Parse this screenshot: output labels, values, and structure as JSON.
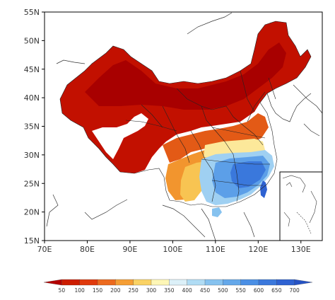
{
  "map": {
    "lat_labels": [
      "55N",
      "50N",
      "45N",
      "40N",
      "35N",
      "30N",
      "25N",
      "20N",
      "15N"
    ],
    "lon_labels": [
      "70E",
      "80E",
      "90E",
      "100E",
      "110E",
      "120E",
      "130E"
    ],
    "extent": {
      "lon": [
        70,
        135
      ],
      "lat": [
        15,
        55
      ]
    }
  },
  "colorbar": {
    "labels": [
      "50",
      "100",
      "150",
      "200",
      "250",
      "300",
      "350",
      "400",
      "450",
      "500",
      "550",
      "600",
      "650",
      "700"
    ],
    "colors": [
      "#b30000",
      "#cc1c00",
      "#e03a0c",
      "#ec6a1e",
      "#f59e34",
      "#fad264",
      "#fdf6b6",
      "#dcf0f8",
      "#b0dcf4",
      "#86c2ef",
      "#64a8ea",
      "#4a8fe5",
      "#3a78dc",
      "#2e62d2",
      "#2552c4"
    ]
  }
}
